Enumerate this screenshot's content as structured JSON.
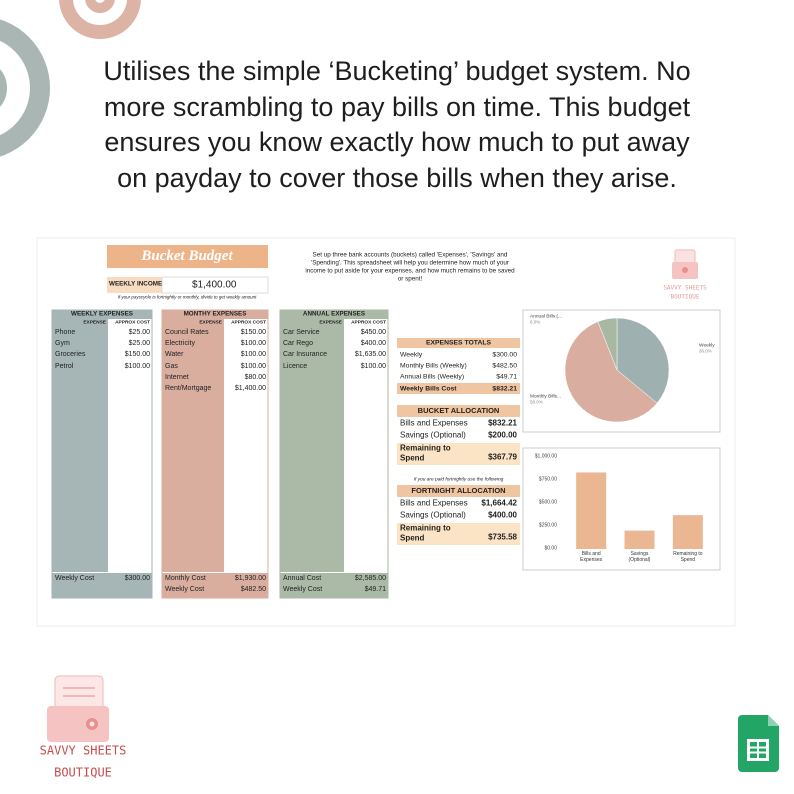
{
  "headline": {
    "lines": [
      "Utilises the simple ‘Bucketing’ budget system. No",
      "more scrambling to pay bills on time. This budget",
      "ensures you know exactly how much to put away",
      "on payday to cover those bills when they arise."
    ]
  },
  "logo_top": {
    "line1": "SAVVY SHEETS",
    "line2": "BOUTIQUE"
  },
  "logo_bottom": {
    "line1": "SAVVY SHEETS",
    "line2": "BOUTIQUE"
  },
  "sheet": {
    "title": "Bucket Budget",
    "income": {
      "label": "WEEKLY INCOME",
      "value": "$1,400.00",
      "note": "If your payscycle is fortnightly or monthly, divide to get weekly amount"
    },
    "instructions": [
      "Set up three bank accounts (buckets) called 'Expenses', 'Savings' and",
      "'Spending'. This spreadsheet will help you determine how much of your",
      "income to put aside for your expenses, and how much remains to be saved",
      "or spent!"
    ],
    "columns": [
      {
        "title": "WEEKLY EXPENSES",
        "color": "#a6b6b6",
        "head": [
          "EXPENSE",
          "APPROX COST"
        ],
        "rows": [
          [
            "Phone",
            "$25.00"
          ],
          [
            "Gym",
            "$25.00"
          ],
          [
            "Groceries",
            "$150.00"
          ],
          [
            "Petrol",
            "$100.00"
          ]
        ],
        "footer": [
          [
            "Weekly Cost",
            "$300.00"
          ]
        ]
      },
      {
        "title": "MONTHY EXPENSES",
        "color": "#d9ae9f",
        "head": [
          "EXPENSE",
          "APPROX COST"
        ],
        "rows": [
          [
            "Council Rates",
            "$150.00"
          ],
          [
            "Electricity",
            "$100.00"
          ],
          [
            "Water",
            "$100.00"
          ],
          [
            "Gas",
            "$100.00"
          ],
          [
            "Internet",
            "$80.00"
          ],
          [
            "Rent/Mortgage",
            "$1,400.00"
          ]
        ],
        "footer": [
          [
            "Monthly Cost",
            "$1,930.00"
          ],
          [
            "Weekly Cost",
            "$482.50"
          ]
        ]
      },
      {
        "title": "ANNUAL EXPENSES",
        "color": "#aabaa6",
        "head": [
          "EXPENSE",
          "APPROX COST"
        ],
        "rows": [
          [
            "Car Service",
            "$450.00"
          ],
          [
            "Car Rego",
            "$400.00"
          ],
          [
            "Car Insurance",
            "$1,635.00"
          ],
          [
            "Licence",
            "$100.00"
          ]
        ],
        "footer": [
          [
            "Annual Cost",
            "$2,585.00"
          ],
          [
            "Weekly Cost",
            "$49.71"
          ]
        ]
      }
    ],
    "totals": {
      "title": "EXPENSES TOTALS",
      "rows": [
        [
          "Weekly",
          "$300.00"
        ],
        [
          "Monthly Bills (Weekly)",
          "$482.50"
        ],
        [
          "Annual Bills (Weekly)",
          "$49.71"
        ]
      ],
      "total": [
        "Weekly Bills Cost",
        "$832.21"
      ]
    },
    "bucket": {
      "title": "BUCKET ALLOCATION",
      "rows": [
        [
          "Bills and Expenses",
          "$832.21"
        ],
        [
          "Savings (Optional)",
          "$200.00"
        ]
      ],
      "remaining": {
        "label_lines": [
          "Remaining to",
          "Spend"
        ],
        "value": "$367.79"
      }
    },
    "fortnight_note": "If you are paid fortnightly use the following",
    "fortnight": {
      "title": "FORTNIGHT ALLOCATION",
      "rows": [
        [
          "Bills and Expenses",
          "$1,664.42"
        ],
        [
          "Savings (Optional)",
          "$400.00"
        ]
      ],
      "remaining": {
        "label_lines": [
          "Remaining to",
          "Spend"
        ],
        "value": "$735.58"
      }
    }
  },
  "chart_data": [
    {
      "type": "pie",
      "categories": [
        "Weekly",
        "Monthly Bills...",
        "Annual Bills (..."
      ],
      "values": [
        36.0,
        58.0,
        6.0
      ],
      "value_labels": [
        "36.0%",
        "58.0%",
        "6.0%"
      ],
      "colors": [
        "#9fb0b0",
        "#d9aea1",
        "#a8b8a3"
      ]
    },
    {
      "type": "bar",
      "categories": [
        "Bills and Expenses",
        "Savings (Optional)",
        "Remaining to Spend"
      ],
      "values": [
        832.21,
        200,
        367.79
      ],
      "color": "#ebb792",
      "ylim": [
        0,
        1000
      ],
      "yticks": [
        {
          "value": 0,
          "label": "$0.00"
        },
        {
          "value": 250,
          "label": "$250.00"
        },
        {
          "value": 500,
          "label": "$500.00"
        },
        {
          "value": 750,
          "label": "$750.00"
        },
        {
          "value": 1000,
          "label": "$1,000.00"
        }
      ],
      "grid": false
    }
  ]
}
